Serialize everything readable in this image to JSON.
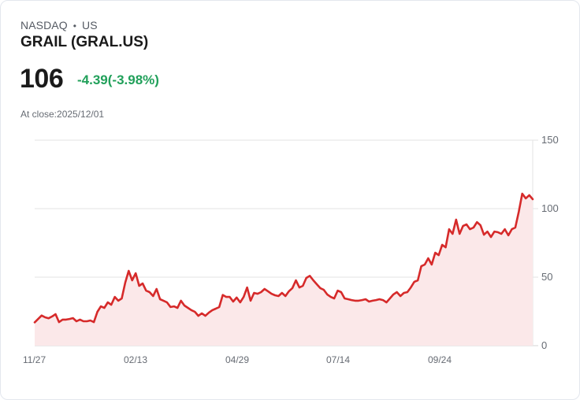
{
  "header": {
    "exchange": "NASDAQ",
    "separator": "•",
    "region": "US",
    "title": "GRAIL (GRAL.US)",
    "price": "106",
    "change": "-4.39(-3.98%)",
    "close_label": "At close:2025/12/01"
  },
  "colors": {
    "line": "#d62a2a",
    "fill": "#fbe8e9",
    "change_positive_text": "#21a05a",
    "grid": "#e3e3e3"
  },
  "chart_data": {
    "type": "area",
    "title": "GRAIL (GRAL.US)",
    "xlabel": "",
    "ylabel": "",
    "ylim": [
      0,
      150
    ],
    "yticks": [
      0,
      50,
      100,
      150
    ],
    "xtick_labels": [
      "11/27",
      "02/13",
      "04/29",
      "07/14",
      "09/24"
    ],
    "grid": true,
    "y_axis_position": "right",
    "legend": null,
    "values": [
      17,
      19.5,
      22,
      20.7,
      20,
      21.3,
      23,
      17.2,
      19,
      19,
      19.5,
      20.1,
      17.8,
      19,
      17.8,
      17.8,
      18.4,
      17.2,
      24.7,
      28.7,
      27.6,
      31.6,
      29.9,
      35.6,
      32.8,
      34.5,
      46,
      54.6,
      47.7,
      52.9,
      43.7,
      45.4,
      40.2,
      39.1,
      36.2,
      41.4,
      33.9,
      32.8,
      31.6,
      28.2,
      28.7,
      27.6,
      32.8,
      29.3,
      27.6,
      25.9,
      24.7,
      21.8,
      23.6,
      21.8,
      24.1,
      25.9,
      27,
      28.2,
      37,
      35.6,
      35.6,
      32.2,
      35.1,
      31.6,
      35.6,
      42.5,
      32.8,
      38.5,
      37.9,
      39.1,
      41.4,
      39.7,
      37.9,
      36.8,
      36.2,
      38.5,
      36.2,
      39.7,
      42,
      47.7,
      42.5,
      43.7,
      49.4,
      51,
      47.7,
      44.8,
      42,
      40.8,
      37.4,
      35.6,
      34.5,
      40.2,
      39.1,
      34.5,
      33.9,
      33.3,
      32.8,
      32.8,
      33.3,
      33.9,
      32.2,
      32.8,
      33.3,
      33.9,
      33.3,
      31.6,
      34.5,
      37.4,
      39.1,
      36.2,
      38.5,
      39.1,
      42.5,
      46.6,
      47.7,
      58,
      59.2,
      63.8,
      59.2,
      67.8,
      66.1,
      73.6,
      71.8,
      85,
      81.6,
      92,
      81.6,
      87.4,
      88.5,
      85,
      86.2,
      90.2,
      87.9,
      81,
      83.3,
      79.3,
      83.3,
      82.8,
      81.6,
      85,
      80.5,
      85,
      86.2,
      97.7,
      110.9,
      107.5,
      109.8,
      106.9
    ],
    "last_value": 106,
    "last_change": -4.39,
    "last_change_pct": -3.98
  }
}
